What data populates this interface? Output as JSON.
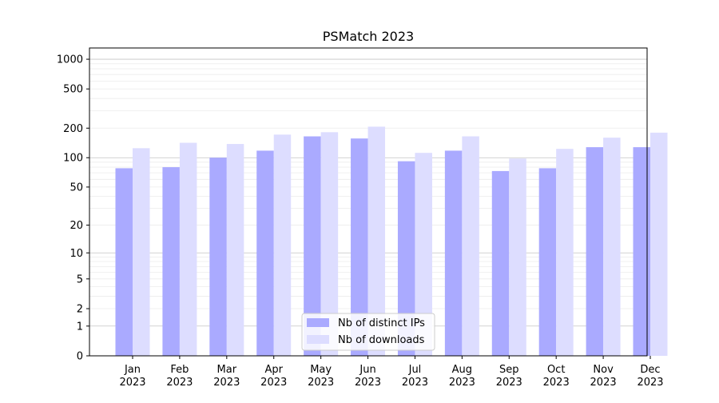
{
  "chart_data": {
    "type": "bar",
    "title": "PSMatch 2023",
    "xlabel": "",
    "ylabel": "",
    "yscale": "symlog",
    "ylim": [
      0,
      1300
    ],
    "yticks": [
      0,
      1,
      2,
      5,
      10,
      20,
      50,
      100,
      200,
      500,
      1000
    ],
    "grid": "horizontal",
    "legend_position": "bottom-center",
    "categories": [
      {
        "month": "Jan",
        "year": "2023"
      },
      {
        "month": "Feb",
        "year": "2023"
      },
      {
        "month": "Mar",
        "year": "2023"
      },
      {
        "month": "Apr",
        "year": "2023"
      },
      {
        "month": "May",
        "year": "2023"
      },
      {
        "month": "Jun",
        "year": "2023"
      },
      {
        "month": "Jul",
        "year": "2023"
      },
      {
        "month": "Aug",
        "year": "2023"
      },
      {
        "month": "Sep",
        "year": "2023"
      },
      {
        "month": "Oct",
        "year": "2023"
      },
      {
        "month": "Nov",
        "year": "2023"
      },
      {
        "month": "Dec",
        "year": "2023"
      }
    ],
    "series": [
      {
        "name": "Nb of distinct IPs",
        "color": "#aaaaff",
        "values": [
          78,
          80,
          100,
          118,
          165,
          157,
          92,
          118,
          73,
          78,
          128,
          128
        ]
      },
      {
        "name": "Nb of downloads",
        "color": "#ddddff",
        "values": [
          125,
          142,
          138,
          172,
          182,
          207,
          112,
          165,
          98,
          123,
          160,
          180
        ]
      }
    ]
  }
}
